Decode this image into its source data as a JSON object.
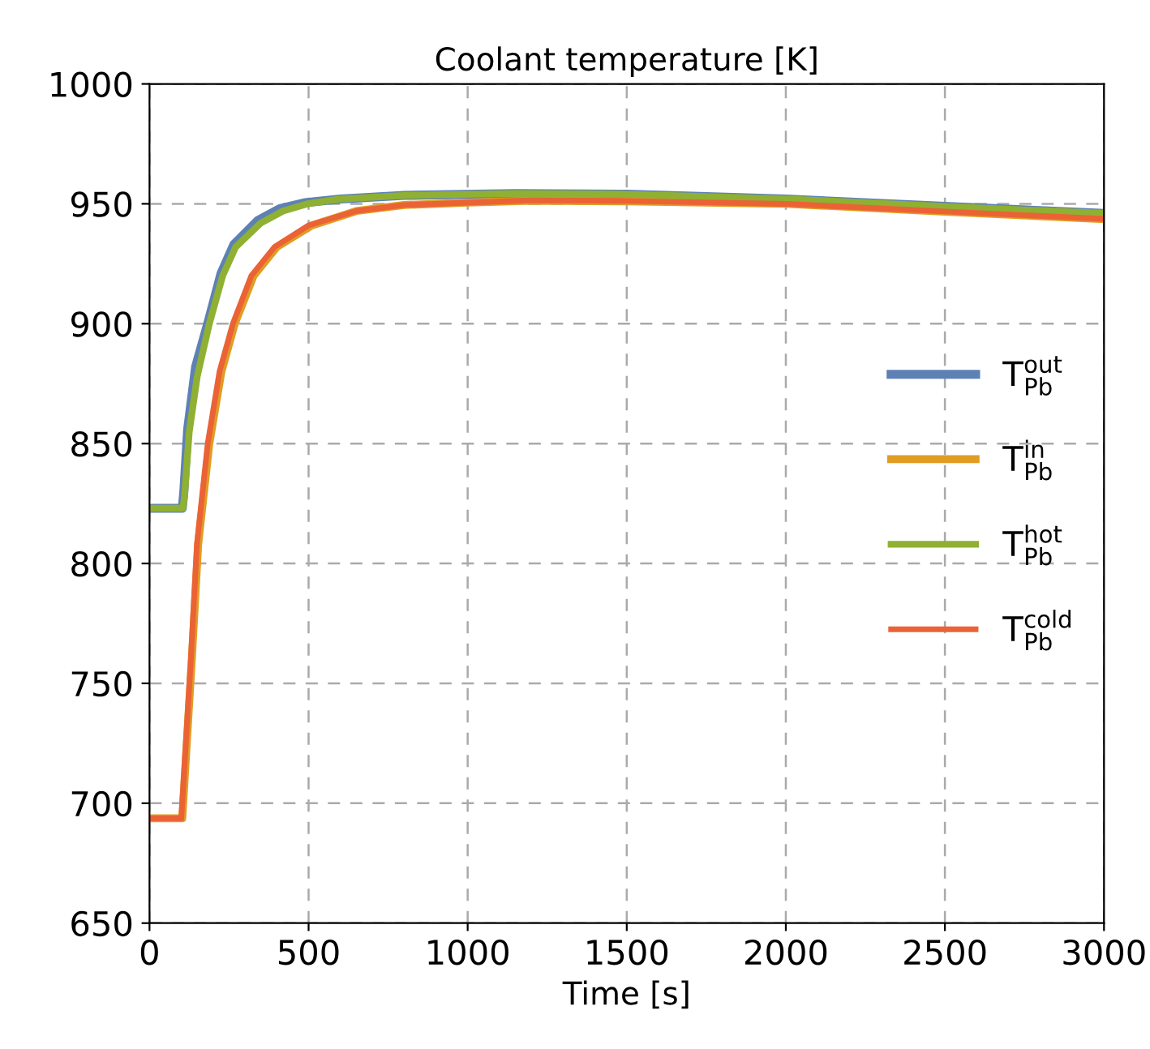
{
  "chart_data": {
    "type": "line",
    "title": "Coolant temperature [K]",
    "xlabel": "Time [s]",
    "xlim": [
      0,
      3000
    ],
    "xticks": [
      0,
      500,
      1000,
      1500,
      2000,
      2500,
      3000
    ],
    "ylim": [
      650,
      1000
    ],
    "yticks": [
      650,
      700,
      750,
      800,
      850,
      900,
      950,
      1000
    ],
    "grid": true,
    "legend": "right",
    "line_style": "solid",
    "series": [
      {
        "name": "T$^{out}$$_{Pb}$",
        "color": "#5e81b5",
        "x": [
          0,
          103,
          108,
          120,
          145,
          183,
          225,
          265,
          340,
          410,
          490,
          600,
          800,
          1150,
          1500,
          2000,
          2500,
          3000
        ],
        "values": [
          823,
          823,
          830,
          856,
          882,
          900,
          921,
          933,
          943,
          948,
          950.5,
          952,
          953.5,
          954.3,
          954,
          952,
          948.9,
          946
        ]
      },
      {
        "name": "T$^{in}$$_{Pb}$",
        "color": "#e19c24",
        "x": [
          0,
          103,
          133,
          153,
          188,
          226,
          268,
          327,
          400,
          510,
          650,
          800,
          1000,
          1200,
          1500,
          2000,
          2500,
          3000
        ],
        "values": [
          693.7,
          693.7,
          760,
          808,
          850,
          880,
          900,
          920,
          932,
          941,
          947,
          949.5,
          950.5,
          951.3,
          951,
          950,
          946.7,
          943.6
        ]
      },
      {
        "name": "T$^{hot}$$_{Pb}$",
        "color": "#8fb032",
        "x": [
          0,
          105,
          110,
          125,
          150,
          188,
          230,
          271,
          350,
          420,
          496,
          600,
          800,
          1150,
          1500,
          2000,
          2500,
          3000
        ],
        "values": [
          823,
          823,
          828,
          855,
          878,
          900,
          920,
          932,
          942,
          947,
          950,
          952,
          953.5,
          954.3,
          954,
          952,
          948.9,
          946
        ]
      },
      {
        "name": "T$^{cold}$$_{Pb}$",
        "color": "#eb6235",
        "x": [
          0,
          100,
          130,
          149,
          183,
          220,
          262,
          320,
          393,
          500,
          650,
          800,
          1000,
          1200,
          1500,
          2000,
          2500,
          3000
        ],
        "values": [
          693.7,
          693.7,
          760,
          808,
          850,
          880,
          900,
          920,
          932,
          941,
          947,
          949.5,
          950.5,
          951.5,
          951.2,
          950,
          946.8,
          943.7
        ]
      }
    ]
  }
}
